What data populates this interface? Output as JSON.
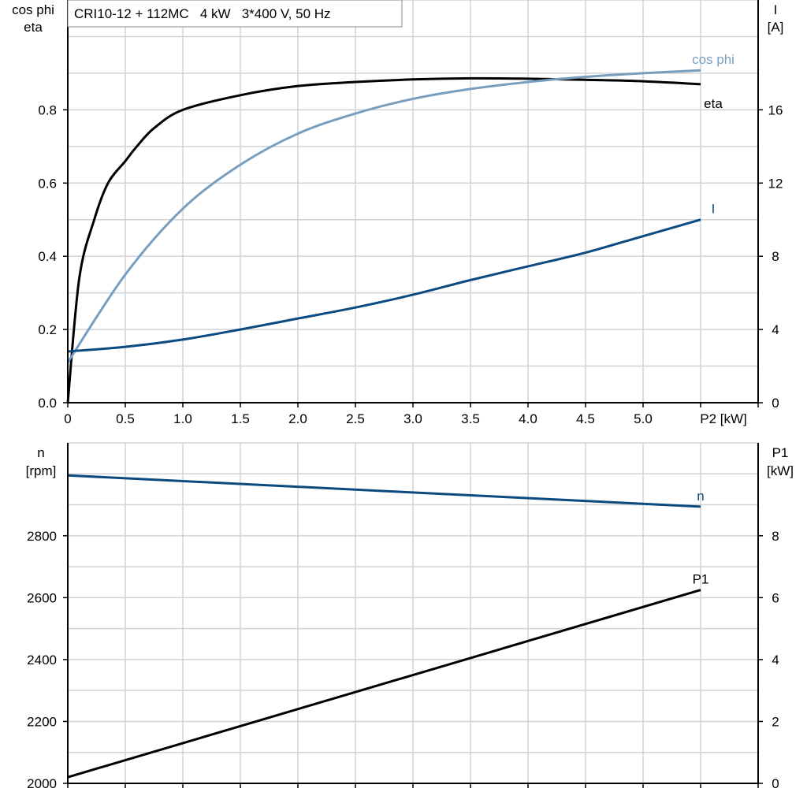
{
  "chart_data": [
    {
      "type": "line",
      "title": "CRI10-12 + 112MC   4 kW   3*400 V, 50 Hz",
      "xlabel": "P2 [kW]",
      "ylabel_left": [
        "cos phi",
        "eta"
      ],
      "ylabel_right": [
        "I",
        "[A]"
      ],
      "xlim": [
        0,
        6
      ],
      "ylim_left": [
        0,
        1.1
      ],
      "ylim_right": [
        0,
        22
      ],
      "grid": true,
      "x_ticks": [
        "0",
        "0.5",
        "1.0",
        "1.5",
        "2.0",
        "2.5",
        "3.0",
        "3.5",
        "4.0",
        "4.5",
        "5.0"
      ],
      "y_left_ticks": [
        "0.0",
        "0.2",
        "0.4",
        "0.6",
        "0.8"
      ],
      "y_right_ticks": [
        "0",
        "4",
        "8",
        "12",
        "16"
      ],
      "series": [
        {
          "name": "eta",
          "axis": "left",
          "color": "#000000",
          "x": [
            0,
            0.1,
            0.23,
            0.35,
            0.5,
            0.6,
            0.75,
            1.0,
            1.5,
            2.0,
            2.5,
            3.0,
            3.5,
            4.0,
            4.5,
            5.0,
            5.5
          ],
          "y": [
            0,
            0.34,
            0.5,
            0.6,
            0.66,
            0.7,
            0.75,
            0.8,
            0.84,
            0.865,
            0.876,
            0.883,
            0.886,
            0.885,
            0.882,
            0.878,
            0.87
          ]
        },
        {
          "name": "cos phi",
          "axis": "left",
          "color": "#779ebf",
          "x": [
            0,
            0.5,
            1.0,
            1.5,
            2.0,
            2.5,
            3.0,
            3.5,
            4.0,
            4.5,
            5.0,
            5.5
          ],
          "y": [
            0.11,
            0.35,
            0.53,
            0.65,
            0.735,
            0.79,
            0.83,
            0.857,
            0.876,
            0.89,
            0.9,
            0.908
          ]
        },
        {
          "name": "I",
          "axis": "right",
          "color": "#0b4a80",
          "x": [
            0,
            0.5,
            1.0,
            1.5,
            2.0,
            2.5,
            3.0,
            3.5,
            4.0,
            4.5,
            5.0,
            5.5
          ],
          "y": [
            2.8,
            3.05,
            3.45,
            4.0,
            4.6,
            5.2,
            5.9,
            6.7,
            7.45,
            8.2,
            9.1,
            10.0
          ]
        }
      ]
    },
    {
      "type": "line",
      "ylabel_left": [
        "n",
        "[rpm]"
      ],
      "ylabel_right": [
        "P1",
        "[kW]"
      ],
      "xlim": [
        0,
        6
      ],
      "ylim_left": [
        2000,
        3100
      ],
      "ylim_right": [
        0,
        11
      ],
      "grid": true,
      "y_left_ticks": [
        "2000",
        "2200",
        "2400",
        "2600",
        "2800"
      ],
      "y_right_ticks": [
        "0",
        "2",
        "4",
        "6",
        "8"
      ],
      "series": [
        {
          "name": "n",
          "axis": "left",
          "color": "#0b4a80",
          "x": [
            0,
            5.5
          ],
          "y": [
            2995,
            2894
          ]
        },
        {
          "name": "P1",
          "axis": "right",
          "color": "#000000",
          "x": [
            0,
            5.5
          ],
          "y": [
            0.2,
            6.25
          ]
        }
      ]
    }
  ]
}
